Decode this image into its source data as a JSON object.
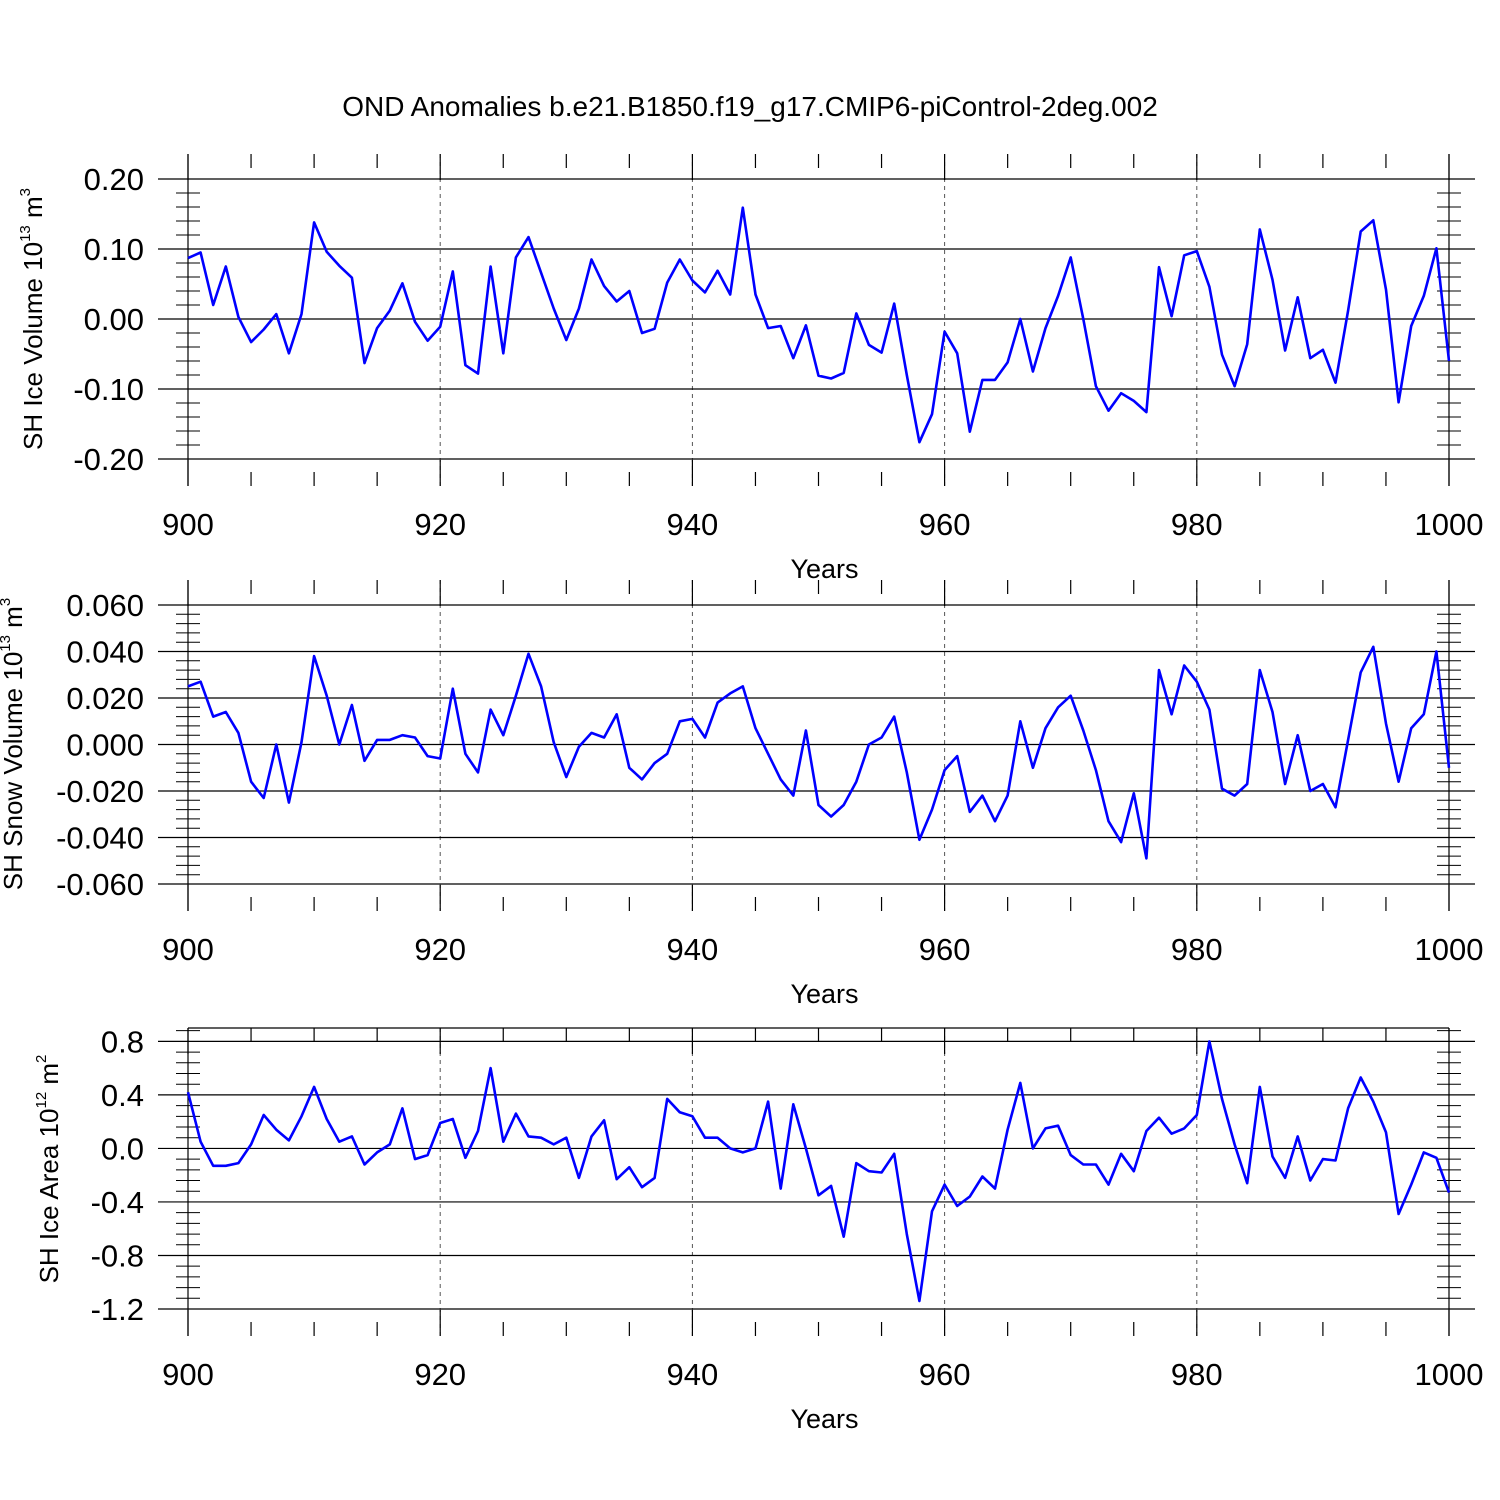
{
  "title": "OND Anomalies b.e21.B1850.f19_g17.CMIP6-piControl-2deg.002",
  "colors": {
    "series": "#0000ff",
    "axis": "#000000",
    "grid": "#555555"
  },
  "chart_data": [
    {
      "type": "line",
      "ylabel_main": "SH Ice Volume 10",
      "ylabel_exp": "13",
      "ylabel_unit": " m",
      "ylabel_unit_exp": "3",
      "xlabel": "Years",
      "xlim": [
        900,
        1000
      ],
      "ylim": [
        -0.2,
        0.2
      ],
      "xticks": [
        "900",
        "920",
        "940",
        "960",
        "980",
        "1000"
      ],
      "yticks": [
        {
          "v": 0.2,
          "label": "0.20"
        },
        {
          "v": 0.1,
          "label": "0.10"
        },
        {
          "v": 0.0,
          "label": "0.00"
        },
        {
          "v": -0.1,
          "label": "-0.10"
        },
        {
          "v": -0.2,
          "label": "-0.20"
        }
      ],
      "x_start": 900,
      "values": [
        0.087,
        0.095,
        0.02,
        0.075,
        0.003,
        -0.033,
        -0.015,
        0.007,
        -0.049,
        0.007,
        0.138,
        0.096,
        0.076,
        0.059,
        -0.063,
        -0.013,
        0.012,
        0.051,
        -0.004,
        -0.031,
        -0.011,
        0.068,
        -0.066,
        -0.078,
        0.075,
        -0.049,
        0.088,
        0.117,
        0.066,
        0.015,
        -0.03,
        0.015,
        0.085,
        0.047,
        0.025,
        0.04,
        -0.02,
        -0.014,
        0.052,
        0.085,
        0.055,
        0.038,
        0.069,
        0.035,
        0.159,
        0.035,
        -0.013,
        -0.01,
        -0.056,
        -0.009,
        -0.081,
        -0.085,
        -0.077,
        0.008,
        -0.037,
        -0.048,
        0.022,
        -0.08,
        -0.176,
        -0.136,
        -0.018,
        -0.049,
        -0.161,
        -0.087,
        -0.087,
        -0.062,
        0.0,
        -0.075,
        -0.013,
        0.033,
        0.088,
        0.0,
        -0.096,
        -0.131,
        -0.106,
        -0.117,
        -0.133,
        0.074,
        0.004,
        0.091,
        0.097,
        0.046,
        -0.051,
        -0.096,
        -0.036,
        0.128,
        0.056,
        -0.045,
        0.031,
        -0.056,
        -0.044,
        -0.091,
        0.012,
        0.125,
        0.141,
        0.042,
        -0.119,
        -0.01,
        0.033,
        0.101,
        -0.06
      ]
    },
    {
      "type": "line",
      "ylabel_main": "SH Snow Volume 10",
      "ylabel_exp": "13",
      "ylabel_unit": " m",
      "ylabel_unit_exp": "3",
      "xlabel": "Years",
      "xlim": [
        900,
        1000
      ],
      "ylim": [
        -0.06,
        0.06
      ],
      "xticks": [
        "900",
        "920",
        "940",
        "960",
        "980",
        "1000"
      ],
      "yticks": [
        {
          "v": 0.06,
          "label": "0.060"
        },
        {
          "v": 0.04,
          "label": "0.040"
        },
        {
          "v": 0.02,
          "label": "0.020"
        },
        {
          "v": 0.0,
          "label": "0.000"
        },
        {
          "v": -0.02,
          "label": "-0.020"
        },
        {
          "v": -0.04,
          "label": "-0.040"
        },
        {
          "v": -0.06,
          "label": "-0.060"
        }
      ],
      "x_start": 900,
      "values": [
        0.025,
        0.027,
        0.012,
        0.014,
        0.005,
        -0.016,
        -0.023,
        0.0,
        -0.025,
        0.001,
        0.038,
        0.021,
        0.0,
        0.017,
        -0.007,
        0.002,
        0.002,
        0.004,
        0.003,
        -0.005,
        -0.006,
        0.024,
        -0.004,
        -0.012,
        0.015,
        0.004,
        0.021,
        0.039,
        0.025,
        0.001,
        -0.014,
        -0.001,
        0.005,
        0.003,
        0.013,
        -0.01,
        -0.015,
        -0.008,
        -0.004,
        0.01,
        0.011,
        0.003,
        0.018,
        0.022,
        0.025,
        0.007,
        -0.004,
        -0.015,
        -0.022,
        0.006,
        -0.026,
        -0.031,
        -0.026,
        -0.016,
        0.0,
        0.003,
        0.012,
        -0.012,
        -0.041,
        -0.028,
        -0.011,
        -0.005,
        -0.029,
        -0.022,
        -0.033,
        -0.022,
        0.01,
        -0.01,
        0.007,
        0.016,
        0.021,
        0.006,
        -0.011,
        -0.033,
        -0.042,
        -0.021,
        -0.049,
        0.032,
        0.013,
        0.034,
        0.027,
        0.015,
        -0.019,
        -0.022,
        -0.017,
        0.032,
        0.014,
        -0.017,
        0.004,
        -0.02,
        -0.017,
        -0.027,
        0.002,
        0.031,
        0.042,
        0.009,
        -0.016,
        0.007,
        0.013,
        0.04,
        -0.01
      ]
    },
    {
      "type": "line",
      "ylabel_main": "SH Ice Area 10",
      "ylabel_exp": "12",
      "ylabel_unit": " m",
      "ylabel_unit_exp": "2",
      "xlabel": "Years",
      "xlim": [
        900,
        1000
      ],
      "ylim": [
        -1.2,
        0.9
      ],
      "xticks": [
        "900",
        "920",
        "940",
        "960",
        "980",
        "1000"
      ],
      "yticks": [
        {
          "v": 0.8,
          "label": "0.8"
        },
        {
          "v": 0.4,
          "label": "0.4"
        },
        {
          "v": 0.0,
          "label": "0.0"
        },
        {
          "v": -0.4,
          "label": "-0.4"
        },
        {
          "v": -0.8,
          "label": "-0.8"
        },
        {
          "v": -1.2,
          "label": "-1.2"
        }
      ],
      "x_start": 900,
      "values": [
        0.42,
        0.05,
        -0.13,
        -0.13,
        -0.11,
        0.03,
        0.25,
        0.14,
        0.06,
        0.24,
        0.46,
        0.22,
        0.05,
        0.09,
        -0.12,
        -0.03,
        0.03,
        0.3,
        -0.08,
        -0.05,
        0.19,
        0.22,
        -0.07,
        0.13,
        0.6,
        0.05,
        0.26,
        0.09,
        0.08,
        0.03,
        0.08,
        -0.22,
        0.09,
        0.21,
        -0.23,
        -0.14,
        -0.29,
        -0.22,
        0.37,
        0.27,
        0.24,
        0.08,
        0.08,
        0.0,
        -0.03,
        0.0,
        0.35,
        -0.3,
        0.33,
        0.0,
        -0.35,
        -0.28,
        -0.66,
        -0.11,
        -0.17,
        -0.18,
        -0.04,
        -0.64,
        -1.14,
        -0.47,
        -0.27,
        -0.43,
        -0.36,
        -0.21,
        -0.3,
        0.14,
        0.49,
        0.0,
        0.15,
        0.17,
        -0.05,
        -0.12,
        -0.12,
        -0.27,
        -0.04,
        -0.17,
        0.13,
        0.23,
        0.11,
        0.15,
        0.25,
        0.8,
        0.37,
        0.03,
        -0.26,
        0.46,
        -0.06,
        -0.22,
        0.09,
        -0.24,
        -0.08,
        -0.09,
        0.3,
        0.53,
        0.35,
        0.12,
        -0.49,
        -0.27,
        -0.03,
        -0.07,
        -0.33
      ]
    }
  ]
}
